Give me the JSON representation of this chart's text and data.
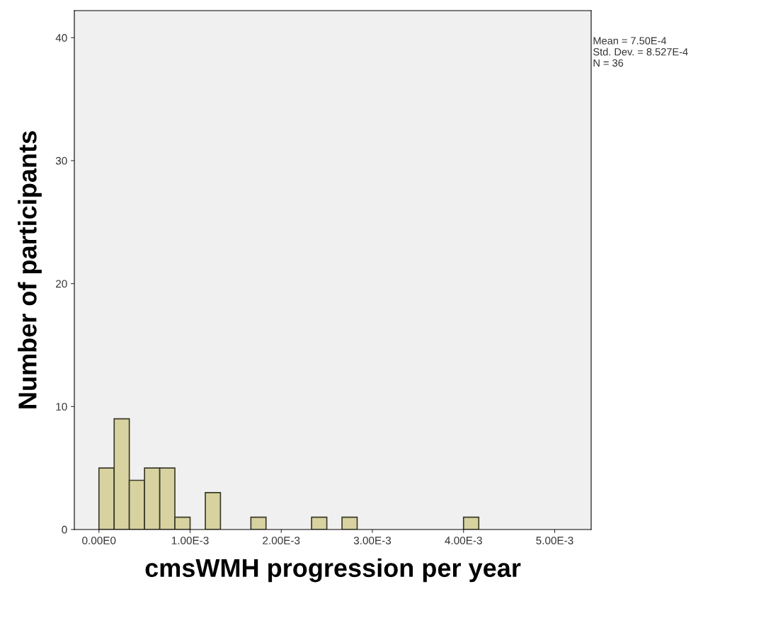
{
  "chart_data": {
    "type": "histogram",
    "xlabel": "cmsWMH progression per year",
    "ylabel": "Number of participants",
    "bins": [
      0,
      0.000167,
      0.000333,
      0.0005,
      0.000667,
      0.000833,
      0.001,
      0.001167,
      0.001333,
      0.0015,
      0.001667,
      0.001833,
      0.002,
      0.002167,
      0.002333,
      0.0025,
      0.002667,
      0.002833,
      0.003,
      0.003167,
      0.003333,
      0.0035,
      0.003667,
      0.003833,
      0.004,
      0.004167
    ],
    "values": [
      5,
      9,
      4,
      5,
      5,
      1,
      0,
      3,
      0,
      0,
      1,
      0,
      0,
      0,
      1,
      0,
      1,
      0,
      0,
      0,
      0,
      0,
      0,
      0,
      1
    ],
    "color": "#d8d2a0",
    "xlim": [
      -0.00027,
      0.0054
    ],
    "ylim": [
      0,
      42.2
    ],
    "xticks": [
      {
        "value": 0,
        "label": "0.00E0"
      },
      {
        "value": 0.001,
        "label": "1.00E-3"
      },
      {
        "value": 0.002,
        "label": "2.00E-3"
      },
      {
        "value": 0.003,
        "label": "3.00E-3"
      },
      {
        "value": 0.004,
        "label": "4.00E-3"
      },
      {
        "value": 0.005,
        "label": "5.00E-3"
      }
    ],
    "yticks": [
      0,
      10,
      20,
      30,
      40
    ],
    "grid": false,
    "annotations": [
      "Mean = 7.50E-4\nStd. Dev. = 8.527E-4\nN = 36"
    ]
  }
}
